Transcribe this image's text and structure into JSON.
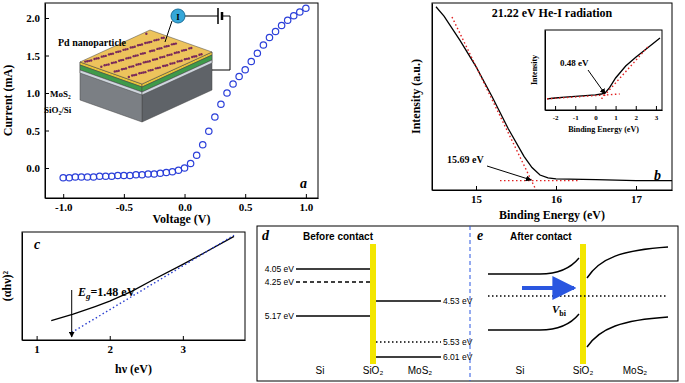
{
  "chart_data": [
    {
      "type": "scatter",
      "xlabel": "Voltage (V)",
      "ylabel": "Current (mA)",
      "x": [
        -1.0,
        -0.95,
        -0.9,
        -0.85,
        -0.8,
        -0.75,
        -0.7,
        -0.65,
        -0.6,
        -0.55,
        -0.5,
        -0.45,
        -0.4,
        -0.35,
        -0.3,
        -0.25,
        -0.2,
        -0.15,
        -0.1,
        -0.05,
        0,
        0.05,
        0.1,
        0.15,
        0.2,
        0.25,
        0.3,
        0.35,
        0.4,
        0.45,
        0.5,
        0.55,
        0.6,
        0.65,
        0.7,
        0.75,
        0.8,
        0.85,
        0.9,
        0.95,
        1.0
      ],
      "values": [
        -0.13,
        -0.13,
        -0.12,
        -0.12,
        -0.12,
        -0.12,
        -0.11,
        -0.11,
        -0.11,
        -0.1,
        -0.1,
        -0.1,
        -0.09,
        -0.09,
        -0.08,
        -0.08,
        -0.07,
        -0.06,
        -0.05,
        -0.03,
        0,
        0.06,
        0.17,
        0.31,
        0.49,
        0.68,
        0.85,
        1.0,
        1.12,
        1.22,
        1.31,
        1.42,
        1.53,
        1.64,
        1.74,
        1.82,
        1.9,
        1.97,
        2.03,
        2.08,
        2.13
      ],
      "color": "#2b3fd9",
      "marker": "circle",
      "xlim": [
        -1.15,
        1.1
      ],
      "xticks": [
        {
          "value": -1,
          "label": "-1.0"
        },
        -0.5,
        {
          "value": 0,
          "label": "0.0"
        },
        0.5,
        {
          "value": 1,
          "label": "1.0"
        }
      ],
      "ylim": [
        -0.4,
        2.2
      ],
      "yticks": [
        {
          "value": 0,
          "label": "0.0"
        },
        0.5,
        {
          "value": 1,
          "label": "1.0"
        },
        1.5,
        {
          "value": 2,
          "label": "2.0"
        }
      ],
      "annotations": [
        {
          "text": "a"
        }
      ]
    },
    {
      "type": "line",
      "title": "21.22 eV He-I radiation",
      "xlabel": "Binding Energy (eV)",
      "ylabel": "Intensity (a.u.)",
      "xlim": [
        14.45,
        17.45
      ],
      "xticks": [
        15,
        16,
        17
      ],
      "ylim": [
        0,
        1
      ],
      "yticks": [],
      "tick_labels": "x",
      "series": [
        {
          "color": "#000000",
          "line_style": "solid",
          "x": [
            14.5,
            14.6,
            14.8,
            15.0,
            15.2,
            15.4,
            15.6,
            15.7,
            15.8,
            15.9,
            16.0,
            16.5,
            17.0,
            17.45
          ],
          "values": [
            0.98,
            0.93,
            0.8,
            0.66,
            0.5,
            0.33,
            0.18,
            0.12,
            0.08,
            0.065,
            0.06,
            0.055,
            0.05,
            0.05
          ]
        },
        {
          "color": "#e02020",
          "line_style": "dotted",
          "x": [
            14.7,
            15.75
          ],
          "values": [
            0.925,
            0.0
          ]
        },
        {
          "color": "#e02020",
          "line_style": "dotted",
          "x": [
            15.3,
            16.3
          ],
          "values": [
            0.05,
            0.05
          ]
        }
      ],
      "annotations": [
        {
          "text": "b"
        },
        {
          "text": "15.69 eV",
          "x": 15.69
        }
      ]
    },
    {
      "type": "line",
      "xlabel": "Binding Energy (eV)",
      "ylabel": "Intensity",
      "xlim": [
        -2.5,
        3.3
      ],
      "xticks": [
        -2,
        -1,
        0,
        1,
        2,
        3
      ],
      "ylim": [
        0,
        1
      ],
      "yticks": [],
      "tick_labels": "x",
      "series": [
        {
          "color": "#000000",
          "line_style": "solid",
          "x": [
            -2.4,
            -2,
            -1.5,
            -1,
            -0.5,
            0,
            0.3,
            0.5,
            0.7,
            1,
            1.5,
            2,
            2.5,
            3,
            3.2
          ],
          "values": [
            0.14,
            0.15,
            0.16,
            0.17,
            0.18,
            0.19,
            0.2,
            0.22,
            0.28,
            0.4,
            0.55,
            0.66,
            0.76,
            0.86,
            0.9
          ]
        },
        {
          "color": "#e02020",
          "line_style": "dotted",
          "x": [
            0.3,
            2.6
          ],
          "values": [
            0.14,
            0.79
          ]
        },
        {
          "color": "#e02020",
          "line_style": "dotted",
          "x": [
            -2.4,
            1.2
          ],
          "values": [
            0.14,
            0.2
          ]
        }
      ],
      "annotations": [
        {
          "text": "0.48 eV",
          "x": 0.48
        }
      ]
    },
    {
      "type": "line",
      "xlabel": "hν (eV)",
      "ylabel": "(αhν)²",
      "xlim": [
        0.8,
        3.85
      ],
      "xticks": [
        1,
        2,
        3
      ],
      "ylim": [
        0,
        1
      ],
      "yticks": [],
      "tick_labels": "x",
      "series": [
        {
          "color": "#000000",
          "line_style": "solid",
          "x": [
            1.2,
            1.5,
            1.8,
            2.0,
            2.3,
            2.6,
            3.0,
            3.3,
            3.7
          ],
          "values": [
            0.18,
            0.24,
            0.31,
            0.36,
            0.45,
            0.56,
            0.7,
            0.81,
            0.96
          ]
        },
        {
          "color": "#2a3fd0",
          "line_style": "dotted",
          "x": [
            1.48,
            3.7
          ],
          "values": [
            0.07,
            0.97
          ]
        }
      ],
      "annotations": [
        {
          "text": "c"
        },
        {
          "symbol": "E",
          "subscript": "g",
          "text": "=1.48 eV",
          "x": 1.48
        }
      ]
    }
  ],
  "schematic": {
    "pd_label": "Pd nanoparticle",
    "film_label": "MoS₂",
    "substrate_label": "SiO₂/Si",
    "meter_label": "I"
  },
  "band_diagram": {
    "panels": [
      {
        "label": "d",
        "title": "Before contact",
        "materials": [
          "Si",
          "SiO₂",
          "MoS₂"
        ],
        "left_levels": [
          {
            "label": "4.05 eV",
            "line_style": "solid"
          },
          {
            "label": "4.25 eV",
            "line_style": "dashed"
          },
          {
            "label": "5.17 eV",
            "line_style": "solid"
          }
        ],
        "right_levels": [
          {
            "label": "4.53 eV",
            "line_style": "solid"
          },
          {
            "label": "5.53 eV",
            "line_style": "dotted"
          },
          {
            "label": "6.01 eV",
            "line_style": "solid"
          }
        ]
      },
      {
        "label": "e",
        "title": "After contact",
        "materials": [
          "Si",
          "SiO₂",
          "MoS₂"
        ],
        "arrow_label": {
          "symbol": "V",
          "subscript": "bi"
        }
      }
    ]
  }
}
